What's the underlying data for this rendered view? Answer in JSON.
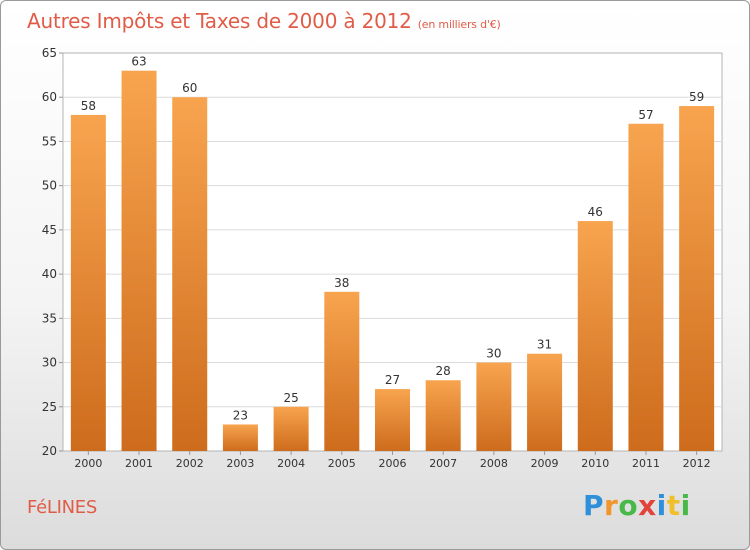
{
  "header": {
    "title": "Autres Impôts et Taxes de 2000 à 2012",
    "subtitle": "(en milliers d'€)"
  },
  "footer": {
    "commune": "FéLINES",
    "logo": [
      "P",
      "r",
      "o",
      "x",
      "i",
      "t",
      "i"
    ]
  },
  "colors": {
    "bar_top": "#f8a44f",
    "bar_bottom": "#cd6c1c",
    "title": "#e05c47"
  },
  "chart_data": {
    "type": "bar",
    "title": "Autres Impôts et Taxes de 2000 à 2012",
    "subtitle": "(en milliers d'€)",
    "xlabel": "",
    "ylabel": "",
    "categories": [
      "2000",
      "2001",
      "2002",
      "2003",
      "2004",
      "2005",
      "2006",
      "2007",
      "2008",
      "2009",
      "2010",
      "2011",
      "2012"
    ],
    "values": [
      58,
      63,
      60,
      23,
      25,
      38,
      27,
      28,
      30,
      31,
      46,
      57,
      59
    ],
    "ylim": [
      20,
      65
    ],
    "yticks": [
      20,
      25,
      30,
      35,
      40,
      45,
      50,
      55,
      60,
      65
    ],
    "grid": true,
    "legend": "none"
  }
}
